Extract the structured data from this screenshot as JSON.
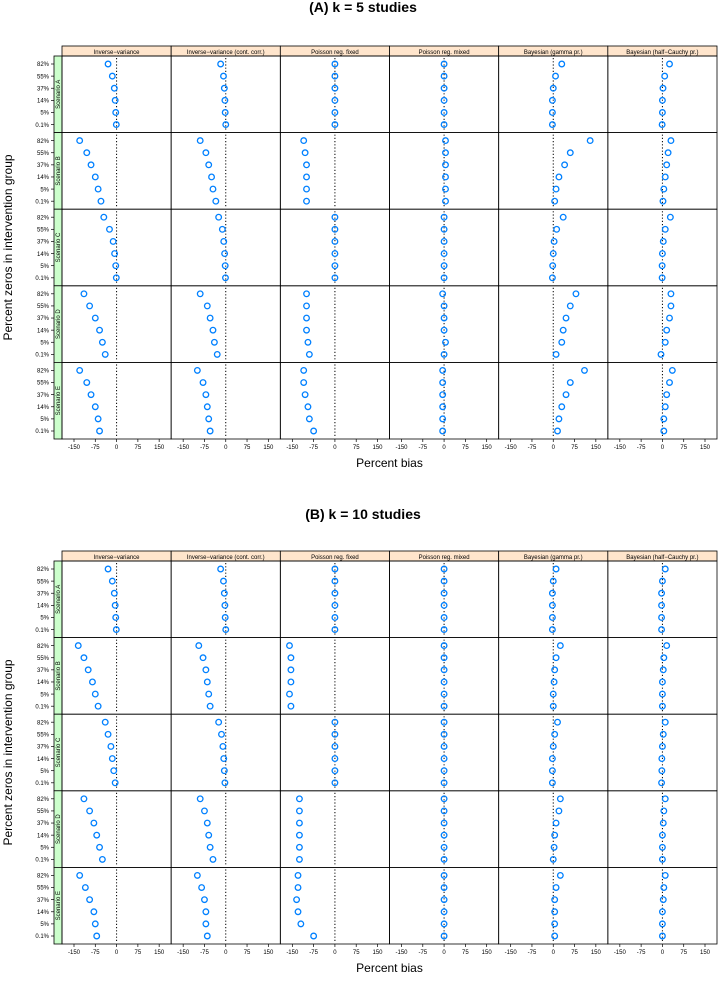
{
  "style": {
    "strip_color": "#ffe5cc",
    "scenario_strip_color": "#ccffcc",
    "point_color": "#0080ff",
    "panel_border": "#000000"
  },
  "chart_data": [
    {
      "type": "scatter",
      "title": "(A) k = 5 studies",
      "xlabel": "Percent bias",
      "ylabel": "Percent zeros in intervention group",
      "xlim": [
        -150,
        150
      ],
      "xticks": [
        -150,
        -75,
        0,
        75,
        150
      ],
      "xtick_labels": [
        "-150",
        "-75",
        "0",
        "75",
        "150"
      ],
      "yticks": [
        "0.1%",
        "5%",
        "14%",
        "37%",
        "55%",
        "82%"
      ],
      "reference_line": 0,
      "methods": [
        "Inverse−variance",
        "Inverse−variance (cont. corr.)",
        "Poisson reg. fixed",
        "Poisson reg. mixed",
        "Bayesian (gamma pr.)",
        "Bayesian (half−Cauchy pr.)"
      ],
      "scenarios": [
        "Scenario A",
        "Scenario B",
        "Scenario C",
        "Scenario D",
        "Scenario E"
      ],
      "values": {
        "Scenario A": [
          [
            -30,
            -15,
            -8,
            -5,
            -3,
            -1
          ],
          [
            -18,
            -8,
            -5,
            -3,
            -2,
            0
          ],
          [
            0,
            0,
            0,
            0,
            0,
            0
          ],
          [
            0,
            0,
            0,
            0,
            0,
            0
          ],
          [
            30,
            8,
            0,
            -3,
            -3,
            -3
          ],
          [
            25,
            8,
            2,
            0,
            0,
            -1
          ]
        ],
        "Scenario B": [
          [
            -130,
            -105,
            -90,
            -75,
            -65,
            -55
          ],
          [
            -90,
            -70,
            -60,
            -50,
            -45,
            -35
          ],
          [
            -110,
            -105,
            -100,
            -100,
            -100,
            -100
          ],
          [
            5,
            5,
            5,
            5,
            5,
            5
          ],
          [
            130,
            60,
            40,
            20,
            10,
            5
          ],
          [
            30,
            20,
            15,
            10,
            5,
            2
          ]
        ],
        "Scenario C": [
          [
            -45,
            -25,
            -12,
            -7,
            -3,
            -1
          ],
          [
            -25,
            -12,
            -7,
            -4,
            -2,
            -1
          ],
          [
            0,
            0,
            0,
            0,
            0,
            0
          ],
          [
            0,
            0,
            0,
            0,
            0,
            0
          ],
          [
            35,
            12,
            3,
            0,
            -2,
            -3
          ],
          [
            28,
            10,
            3,
            0,
            -1,
            -1
          ]
        ],
        "Scenario D": [
          [
            -115,
            -95,
            -75,
            -60,
            -50,
            -40
          ],
          [
            -90,
            -65,
            -55,
            -45,
            -40,
            -30
          ],
          [
            -100,
            -100,
            -100,
            -100,
            -95,
            -90
          ],
          [
            -5,
            0,
            0,
            0,
            5,
            0
          ],
          [
            80,
            60,
            45,
            35,
            30,
            10
          ],
          [
            30,
            30,
            25,
            15,
            10,
            -5
          ]
        ],
        "Scenario E": [
          [
            -130,
            -105,
            -90,
            -75,
            -65,
            -60
          ],
          [
            -100,
            -80,
            -70,
            -65,
            -60,
            -55
          ],
          [
            -110,
            -110,
            -105,
            -95,
            -90,
            -75
          ],
          [
            -5,
            -5,
            -5,
            -5,
            -5,
            -5
          ],
          [
            110,
            60,
            45,
            30,
            20,
            15
          ],
          [
            35,
            25,
            15,
            10,
            5,
            5
          ]
        ]
      }
    },
    {
      "type": "scatter",
      "title": "(B) k = 10 studies",
      "xlabel": "Percent bias",
      "ylabel": "Percent zeros in intervention group",
      "xlim": [
        -150,
        150
      ],
      "xticks": [
        -150,
        -75,
        0,
        75,
        150
      ],
      "xtick_labels": [
        "-150",
        "-75",
        "0",
        "75",
        "150"
      ],
      "yticks": [
        "0.1%",
        "5%",
        "14%",
        "37%",
        "55%",
        "82%"
      ],
      "reference_line": 0,
      "methods": [
        "Inverse−variance",
        "Inverse−variance (cont. corr.)",
        "Poisson reg. fixed",
        "Poisson reg. mixed",
        "Bayesian (gamma pr.)",
        "Bayesian (half−Cauchy pr.)"
      ],
      "scenarios": [
        "Scenario A",
        "Scenario B",
        "Scenario C",
        "Scenario D",
        "Scenario E"
      ],
      "values": {
        "Scenario A": [
          [
            -30,
            -15,
            -8,
            -5,
            -3,
            -1
          ],
          [
            -18,
            -8,
            -5,
            -3,
            -2,
            0
          ],
          [
            0,
            0,
            0,
            0,
            0,
            0
          ],
          [
            0,
            0,
            0,
            0,
            0,
            0
          ],
          [
            10,
            0,
            -3,
            -3,
            -3,
            -3
          ],
          [
            10,
            0,
            -3,
            -3,
            -3,
            -3
          ]
        ],
        "Scenario B": [
          [
            -135,
            -115,
            -100,
            -85,
            -75,
            -65
          ],
          [
            -95,
            -80,
            -70,
            -65,
            -60,
            -55
          ],
          [
            -160,
            -155,
            -155,
            -155,
            -160,
            -155
          ],
          [
            0,
            0,
            0,
            0,
            0,
            0
          ],
          [
            25,
            10,
            5,
            3,
            0,
            0
          ],
          [
            15,
            5,
            3,
            0,
            0,
            0
          ]
        ],
        "Scenario C": [
          [
            -40,
            -30,
            -20,
            -15,
            -10,
            -5
          ],
          [
            -25,
            -15,
            -10,
            -7,
            -5,
            -3
          ],
          [
            0,
            0,
            0,
            0,
            0,
            0
          ],
          [
            0,
            0,
            0,
            0,
            0,
            0
          ],
          [
            15,
            5,
            0,
            -3,
            -3,
            -3
          ],
          [
            10,
            3,
            0,
            -2,
            -2,
            -3
          ]
        ],
        "Scenario D": [
          [
            -115,
            -95,
            -80,
            -70,
            -60,
            -50
          ],
          [
            -90,
            -75,
            -65,
            -60,
            -55,
            -45
          ],
          [
            -125,
            -125,
            -125,
            -125,
            -125,
            -125
          ],
          [
            0,
            0,
            0,
            0,
            0,
            0
          ],
          [
            25,
            20,
            10,
            5,
            3,
            0
          ],
          [
            10,
            5,
            3,
            0,
            0,
            0
          ]
        ],
        "Scenario E": [
          [
            -130,
            -110,
            -95,
            -80,
            -75,
            -70
          ],
          [
            -100,
            -85,
            -75,
            -70,
            -70,
            -65
          ],
          [
            -130,
            -130,
            -135,
            -130,
            -120,
            -75
          ],
          [
            0,
            0,
            0,
            0,
            0,
            0
          ],
          [
            25,
            10,
            5,
            5,
            5,
            5
          ],
          [
            10,
            5,
            3,
            0,
            0,
            0
          ]
        ]
      }
    }
  ]
}
